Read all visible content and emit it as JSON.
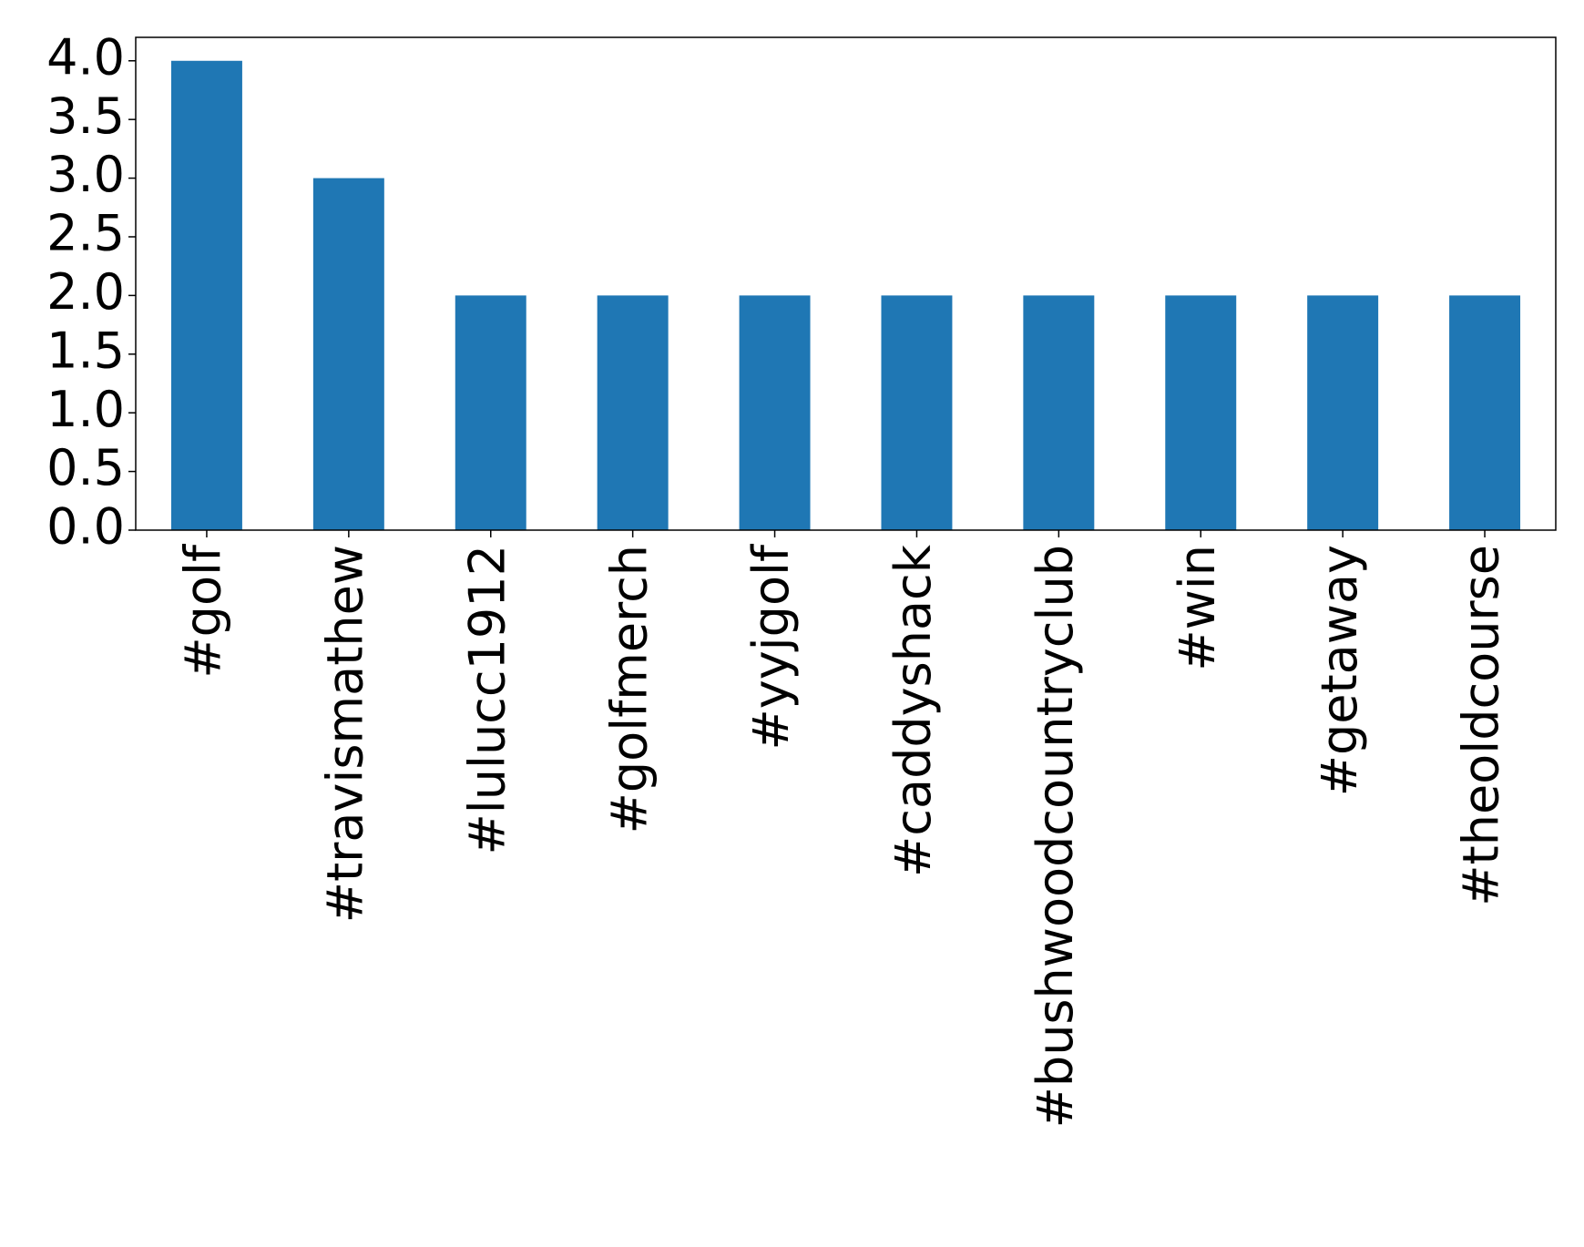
{
  "chart_data": {
    "type": "bar",
    "categories": [
      "#golf",
      "#travismathew",
      "#lulucc1912",
      "#golfmerch",
      "#yyjgolf",
      "#caddyshack",
      "#bushwoodcountryclub",
      "#win",
      "#getaway",
      "#theoldcourse"
    ],
    "values": [
      4,
      3,
      2,
      2,
      2,
      2,
      2,
      2,
      2,
      2
    ],
    "color": "#1f77b4",
    "ylim": [
      0,
      4.2
    ],
    "yticks": [
      {
        "value": 0,
        "label": "0.0"
      },
      {
        "value": 0.5,
        "label": "0.5"
      },
      {
        "value": 1,
        "label": "1.0"
      },
      {
        "value": 1.5,
        "label": "1.5"
      },
      {
        "value": 2,
        "label": "2.0"
      },
      {
        "value": 2.5,
        "label": "2.5"
      },
      {
        "value": 3,
        "label": "3.0"
      },
      {
        "value": 3.5,
        "label": "3.5"
      },
      {
        "value": 4,
        "label": "4.0"
      }
    ],
    "grid": false
  }
}
